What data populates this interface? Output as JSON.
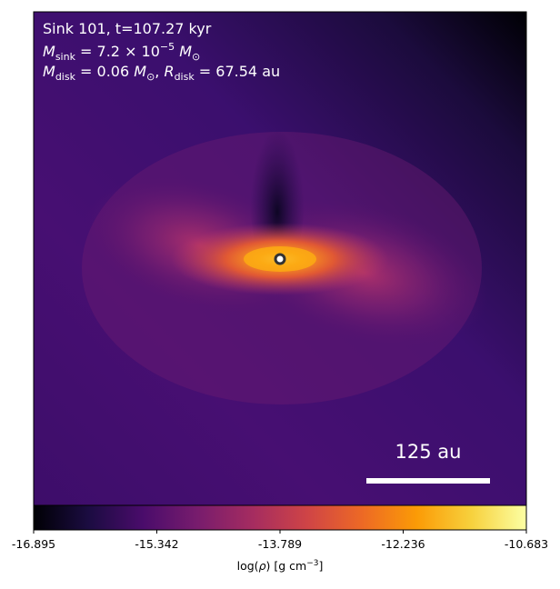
{
  "chart_data": {
    "type": "density-map",
    "title_lines": [
      [
        "Sink 101, t=107.27 kyr"
      ],
      [
        "M",
        "sink",
        " = 7.2 × 10",
        "−5",
        " M",
        "⊙"
      ],
      [
        "M",
        "disk",
        " = 0.06 ",
        "M",
        "⊙",
        ", ",
        "R",
        "disk",
        " = 67.54 au"
      ]
    ],
    "scale_bar_label": "125 au",
    "colormap": "inferno",
    "clim": [
      -16.895,
      -10.683
    ],
    "cticks": [
      -16.895,
      -15.342,
      -13.789,
      -12.236,
      -10.683
    ],
    "colorbar_label": [
      "log(",
      "ρ",
      ") [g cm",
      "−3",
      "]"
    ]
  }
}
